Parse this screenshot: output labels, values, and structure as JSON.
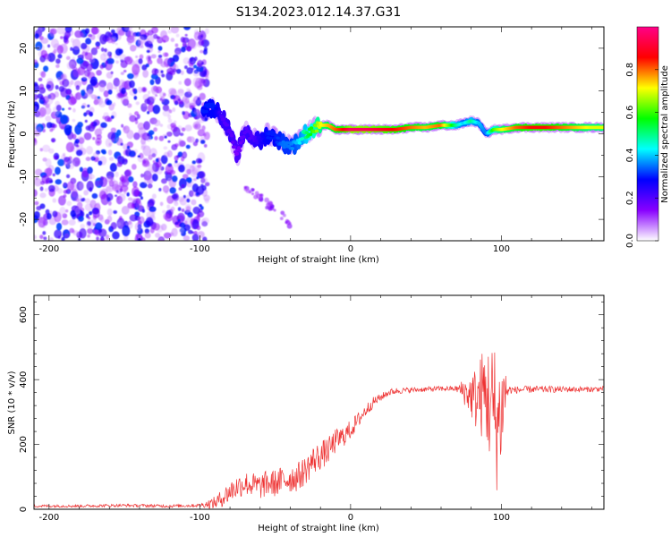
{
  "title": "S134.2023.012.14.37.G31",
  "chart_data": [
    {
      "type": "heatmap",
      "title": "S134.2023.012.14.37.G31",
      "xlabel": "Height of straight line (km)",
      "ylabel": "Frequency (Hz)",
      "xlim": [
        -210,
        168
      ],
      "ylim": [
        -25,
        25
      ],
      "x_ticks": [
        -200,
        -100,
        0,
        100
      ],
      "y_ticks": [
        20,
        10,
        0,
        -10,
        -20
      ],
      "colorbar": {
        "label": "Normalized spectral amplitude",
        "range": [
          0.0,
          1.0
        ],
        "ticks": [
          "0.0",
          "0.2",
          "0.4",
          "0.6",
          "0.8"
        ],
        "colors": [
          "#ffffff",
          "#8800ff",
          "#0000ff",
          "#00ffff",
          "#00ff00",
          "#ffff00",
          "#ff0000",
          "#ff0088"
        ]
      },
      "noise_region_x": [
        -210,
        -95
      ],
      "ridge": {
        "x": [
          -97,
          -90,
          -85,
          -80,
          -75,
          -70,
          -65,
          -60,
          -55,
          -50,
          -45,
          -40,
          -35,
          -30,
          -25,
          -20,
          -15,
          -10,
          -5,
          0,
          10,
          20,
          30,
          40,
          50,
          60,
          70,
          75,
          80,
          85,
          90,
          95,
          100,
          110,
          120,
          130,
          140,
          150,
          160,
          168
        ],
        "y": [
          6,
          6,
          4,
          0,
          -5,
          1,
          -1,
          -2,
          0,
          -1,
          -2,
          -3,
          -2,
          0,
          1,
          2,
          2,
          1,
          1,
          1,
          1,
          1,
          1,
          1.5,
          1.5,
          2,
          2,
          2.5,
          3,
          2.5,
          0,
          1,
          1,
          1.5,
          1.5,
          1.5,
          1.5,
          1.5,
          1.5,
          1.5
        ],
        "amplitude": [
          0.3,
          0.3,
          0.2,
          0.2,
          0.15,
          0.2,
          0.2,
          0.25,
          0.3,
          0.3,
          0.35,
          0.35,
          0.4,
          0.5,
          0.6,
          0.7,
          0.75,
          0.8,
          0.85,
          0.95,
          0.95,
          0.9,
          0.85,
          0.8,
          0.75,
          0.8,
          0.5,
          0.4,
          0.5,
          0.4,
          0.35,
          0.6,
          0.7,
          0.8,
          0.85,
          0.85,
          0.8,
          0.75,
          0.7,
          0.7
        ]
      }
    },
    {
      "type": "line",
      "xlabel": "Height of straight line (km)",
      "ylabel": "SNR (10 * v/v)",
      "xlim": [
        -210,
        168
      ],
      "ylim": [
        0,
        660
      ],
      "x_ticks": [
        -200,
        -100,
        0,
        100
      ],
      "y_ticks": [
        0,
        200,
        400,
        600
      ],
      "color": "#ee3333",
      "series": [
        {
          "x": [
            -210,
            -180,
            -150,
            -120,
            -100,
            -90,
            -85,
            -80,
            -75,
            -70,
            -65,
            -60,
            -55,
            -50,
            -45,
            -40,
            -35,
            -30,
            -25,
            -20,
            -15,
            -10,
            -5,
            0,
            5,
            10,
            15,
            20,
            25,
            30,
            40,
            50,
            60,
            70,
            75,
            80,
            85,
            88,
            92,
            95,
            97,
            100,
            102,
            105,
            110,
            120,
            140,
            160,
            168
          ],
          "y": [
            10,
            10,
            12,
            10,
            12,
            20,
            35,
            55,
            70,
            80,
            75,
            70,
            80,
            80,
            90,
            95,
            100,
            120,
            150,
            165,
            180,
            210,
            225,
            245,
            275,
            305,
            330,
            345,
            360,
            365,
            368,
            370,
            372,
            372,
            365,
            350,
            340,
            360,
            330,
            300,
            260,
            300,
            360,
            368,
            368,
            370,
            370,
            370,
            372
          ]
        }
      ],
      "noise_amplitude": {
        "x": [
          -210,
          -100,
          -80,
          -60,
          -40,
          -20,
          0,
          20,
          40,
          70,
          80,
          85,
          90,
          95,
          100,
          105,
          168
        ],
        "y": [
          4,
          5,
          35,
          40,
          45,
          45,
          30,
          12,
          8,
          8,
          70,
          120,
          160,
          230,
          170,
          12,
          8
        ]
      }
    }
  ]
}
